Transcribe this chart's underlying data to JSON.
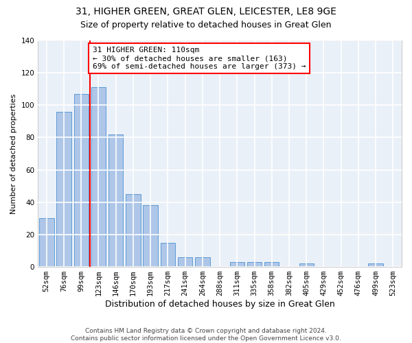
{
  "title1": "31, HIGHER GREEN, GREAT GLEN, LEICESTER, LE8 9GE",
  "title2": "Size of property relative to detached houses in Great Glen",
  "xlabel": "Distribution of detached houses by size in Great Glen",
  "ylabel": "Number of detached properties",
  "categories": [
    "52sqm",
    "76sqm",
    "99sqm",
    "123sqm",
    "146sqm",
    "170sqm",
    "193sqm",
    "217sqm",
    "241sqm",
    "264sqm",
    "288sqm",
    "311sqm",
    "335sqm",
    "358sqm",
    "382sqm",
    "405sqm",
    "429sqm",
    "452sqm",
    "476sqm",
    "499sqm",
    "523sqm"
  ],
  "values": [
    30,
    96,
    107,
    111,
    82,
    45,
    38,
    15,
    6,
    6,
    0,
    3,
    3,
    3,
    0,
    2,
    0,
    0,
    0,
    2,
    0
  ],
  "bar_color": "#aec6e8",
  "bar_edge_color": "#5b9bd5",
  "vline_color": "red",
  "vline_index": 2.5,
  "annotation_text": "31 HIGHER GREEN: 110sqm\n← 30% of detached houses are smaller (163)\n69% of semi-detached houses are larger (373) →",
  "annotation_box_color": "white",
  "annotation_box_edge_color": "red",
  "bg_color": "#eaf0f8",
  "grid_color": "white",
  "ylim": [
    0,
    140
  ],
  "yticks": [
    0,
    20,
    40,
    60,
    80,
    100,
    120,
    140
  ],
  "footnote": "Contains HM Land Registry data © Crown copyright and database right 2024.\nContains public sector information licensed under the Open Government Licence v3.0.",
  "title1_fontsize": 10,
  "title2_fontsize": 9,
  "xlabel_fontsize": 9,
  "ylabel_fontsize": 8,
  "tick_fontsize": 7.5,
  "annotation_fontsize": 8,
  "footnote_fontsize": 6.5
}
